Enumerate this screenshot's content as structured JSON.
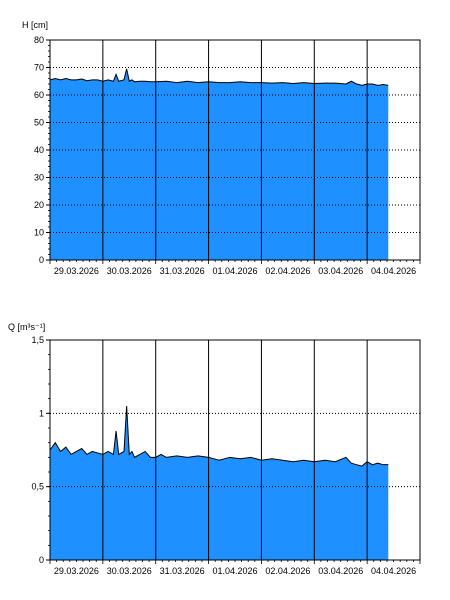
{
  "colors": {
    "fill": "#1e90ff",
    "line": "#000000",
    "grid": "#000000",
    "background": "#ffffff"
  },
  "chart_data": [
    {
      "type": "area",
      "ylabel": "H [cm]",
      "ylim": [
        0,
        80
      ],
      "yticks": [
        0,
        10,
        20,
        30,
        40,
        50,
        60,
        70,
        80
      ],
      "ytick_labels": [
        "0",
        "10",
        "20",
        "30",
        "40",
        "50",
        "60",
        "70",
        "80"
      ],
      "xlim": [
        0,
        7.0
      ],
      "xticks": [
        0.5,
        1.5,
        2.5,
        3.5,
        4.5,
        5.5,
        6.5
      ],
      "xtick_labels": [
        "29.03.2026",
        "30.03.2026",
        "31.03.2026",
        "01.04.2026",
        "02.04.2026",
        "03.04.2026",
        "04.04.2026"
      ],
      "grid": "dotted-horizontal, solid-vertical",
      "series": [
        {
          "x": [
            0,
            0.1,
            0.2,
            0.3,
            0.4,
            0.5,
            0.6,
            0.7,
            0.8,
            0.9,
            1.0,
            1.1,
            1.2,
            1.25,
            1.3,
            1.4,
            1.45,
            1.5,
            1.55,
            1.6,
            1.7,
            1.8,
            1.9,
            2.0,
            2.2,
            2.4,
            2.6,
            2.8,
            3.0,
            3.2,
            3.4,
            3.6,
            3.8,
            4.0,
            4.2,
            4.4,
            4.6,
            4.8,
            5.0,
            5.2,
            5.4,
            5.6,
            5.7,
            5.8,
            5.9,
            6.0,
            6.1,
            6.2,
            6.3,
            6.4
          ],
          "values": [
            65.5,
            66.0,
            65.5,
            66.0,
            65.5,
            65.5,
            65.8,
            65.2,
            65.5,
            65.5,
            65.0,
            65.5,
            65.0,
            67.5,
            65.0,
            65.5,
            69.5,
            65.0,
            65.5,
            64.8,
            65.0,
            65.0,
            64.8,
            64.8,
            65.0,
            64.5,
            65.0,
            64.5,
            64.8,
            64.5,
            64.5,
            64.8,
            64.5,
            64.5,
            64.3,
            64.5,
            64.2,
            64.5,
            64.2,
            64.3,
            64.3,
            64.0,
            65.0,
            64.0,
            63.5,
            64.0,
            64.0,
            63.5,
            63.8,
            63.5
          ]
        }
      ]
    },
    {
      "type": "area",
      "ylabel": "Q [m³s⁻¹]",
      "ylim": [
        0,
        1.5
      ],
      "yticks": [
        0,
        0.5,
        1,
        1.5
      ],
      "ytick_labels": [
        "0",
        "0,5",
        "1",
        "1,5"
      ],
      "xlim": [
        0,
        7.0
      ],
      "xticks": [
        0.5,
        1.5,
        2.5,
        3.5,
        4.5,
        5.5,
        6.5
      ],
      "xtick_labels": [
        "29.03.2026",
        "30.03.2026",
        "31.03.2026",
        "01.04.2026",
        "02.04.2026",
        "03.04.2026",
        "04.04.2026"
      ],
      "grid": "dotted-horizontal, solid-vertical",
      "series": [
        {
          "x": [
            0,
            0.1,
            0.2,
            0.3,
            0.4,
            0.5,
            0.6,
            0.7,
            0.8,
            0.9,
            1.0,
            1.1,
            1.2,
            1.25,
            1.3,
            1.4,
            1.45,
            1.5,
            1.55,
            1.6,
            1.7,
            1.8,
            1.9,
            2.0,
            2.1,
            2.2,
            2.4,
            2.6,
            2.8,
            3.0,
            3.2,
            3.4,
            3.6,
            3.8,
            4.0,
            4.2,
            4.4,
            4.6,
            4.8,
            5.0,
            5.2,
            5.4,
            5.6,
            5.7,
            5.8,
            5.9,
            6.0,
            6.1,
            6.2,
            6.3,
            6.4
          ],
          "values": [
            0.75,
            0.8,
            0.74,
            0.77,
            0.72,
            0.74,
            0.76,
            0.72,
            0.74,
            0.73,
            0.72,
            0.74,
            0.72,
            0.88,
            0.72,
            0.74,
            1.05,
            0.72,
            0.74,
            0.7,
            0.72,
            0.74,
            0.7,
            0.7,
            0.72,
            0.7,
            0.71,
            0.7,
            0.71,
            0.7,
            0.68,
            0.7,
            0.69,
            0.7,
            0.68,
            0.69,
            0.68,
            0.67,
            0.68,
            0.67,
            0.68,
            0.67,
            0.7,
            0.66,
            0.65,
            0.64,
            0.67,
            0.65,
            0.66,
            0.65,
            0.65
          ]
        }
      ]
    }
  ]
}
